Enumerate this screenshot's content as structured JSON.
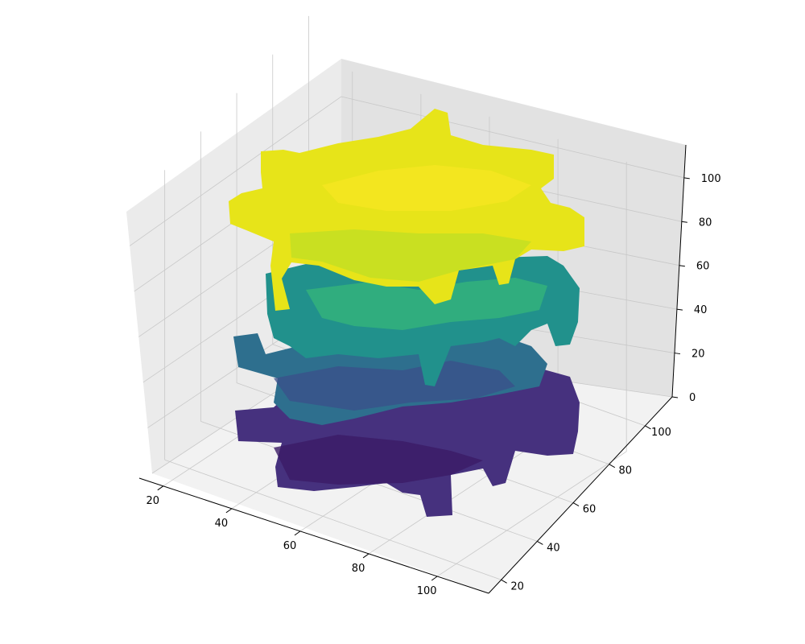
{
  "chart_data": {
    "type": "isosurface-3d",
    "title": "",
    "xlabel": "",
    "ylabel": "",
    "zlabel": "",
    "x_ticks": [
      "20",
      "40",
      "60",
      "80",
      "100"
    ],
    "y_ticks": [
      "20",
      "40",
      "60",
      "80",
      "100"
    ],
    "z_ticks": [
      "0",
      "20",
      "40",
      "60",
      "80",
      "100"
    ],
    "xlim": [
      13,
      115
    ],
    "ylim": [
      13,
      115
    ],
    "zlim": [
      0,
      115
    ],
    "grid": true,
    "colormap": "viridis",
    "colormap_axis": "z",
    "surfaces": [
      {
        "level": "bottom",
        "z_center": 8
      },
      {
        "level": "lower-middle",
        "z_center": 30
      },
      {
        "level": "upper-middle",
        "z_center": 58
      },
      {
        "level": "top",
        "z_center": 100
      }
    ],
    "colors": {
      "pane_left": "#ebebeb",
      "pane_right": "#e2e2e2",
      "pane_floor": "#f2f2f2",
      "grid": "#c8c8c8",
      "viridis_low": "#440154",
      "viridis_mid": "#21918c",
      "viridis_high": "#fde725"
    }
  }
}
